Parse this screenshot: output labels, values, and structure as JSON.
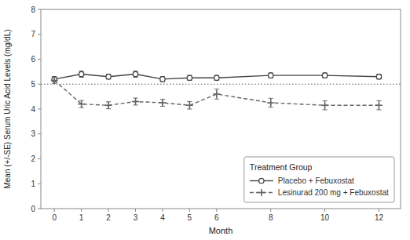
{
  "chart_data": {
    "type": "line",
    "x": [
      0,
      1,
      2,
      3,
      4,
      5,
      6,
      8,
      10,
      12
    ],
    "series": [
      {
        "name": "Placebo + Febuxostat",
        "color": "#444444",
        "marker": "circle",
        "line_style": "solid",
        "values": [
          5.2,
          5.4,
          5.3,
          5.4,
          5.2,
          5.25,
          5.25,
          5.35,
          5.35,
          5.3
        ],
        "errors": [
          0.1,
          0.12,
          0.1,
          0.12,
          0.1,
          0.1,
          0.1,
          0.1,
          0.1,
          0.1
        ]
      },
      {
        "name": "Lesinurad 200 mg + Febuxostat",
        "color": "#666666",
        "marker": "plus",
        "line_style": "dashed",
        "values": [
          5.15,
          4.2,
          4.15,
          4.3,
          4.25,
          4.15,
          4.6,
          4.25,
          4.15,
          4.15
        ],
        "errors": [
          0.12,
          0.14,
          0.14,
          0.14,
          0.14,
          0.15,
          0.2,
          0.18,
          0.18,
          0.18
        ]
      }
    ],
    "reference_lines": [
      {
        "y": 5.0,
        "color": "#555555",
        "line_style": "dotted"
      }
    ],
    "xlabel": "Month",
    "ylabel": "Mean (+/-SE) Serum Uric Acid Levels (mg/dL)",
    "xlim": [
      -0.5,
      12.8
    ],
    "xticks": [
      0,
      1,
      2,
      3,
      4,
      5,
      6,
      8,
      10,
      12
    ],
    "ylim": [
      0,
      8
    ],
    "yticks": [
      0,
      1,
      2,
      3,
      4,
      5,
      6,
      7,
      8
    ],
    "grid": false,
    "legend": "lower right",
    "legend_title": "Treatment Group"
  }
}
